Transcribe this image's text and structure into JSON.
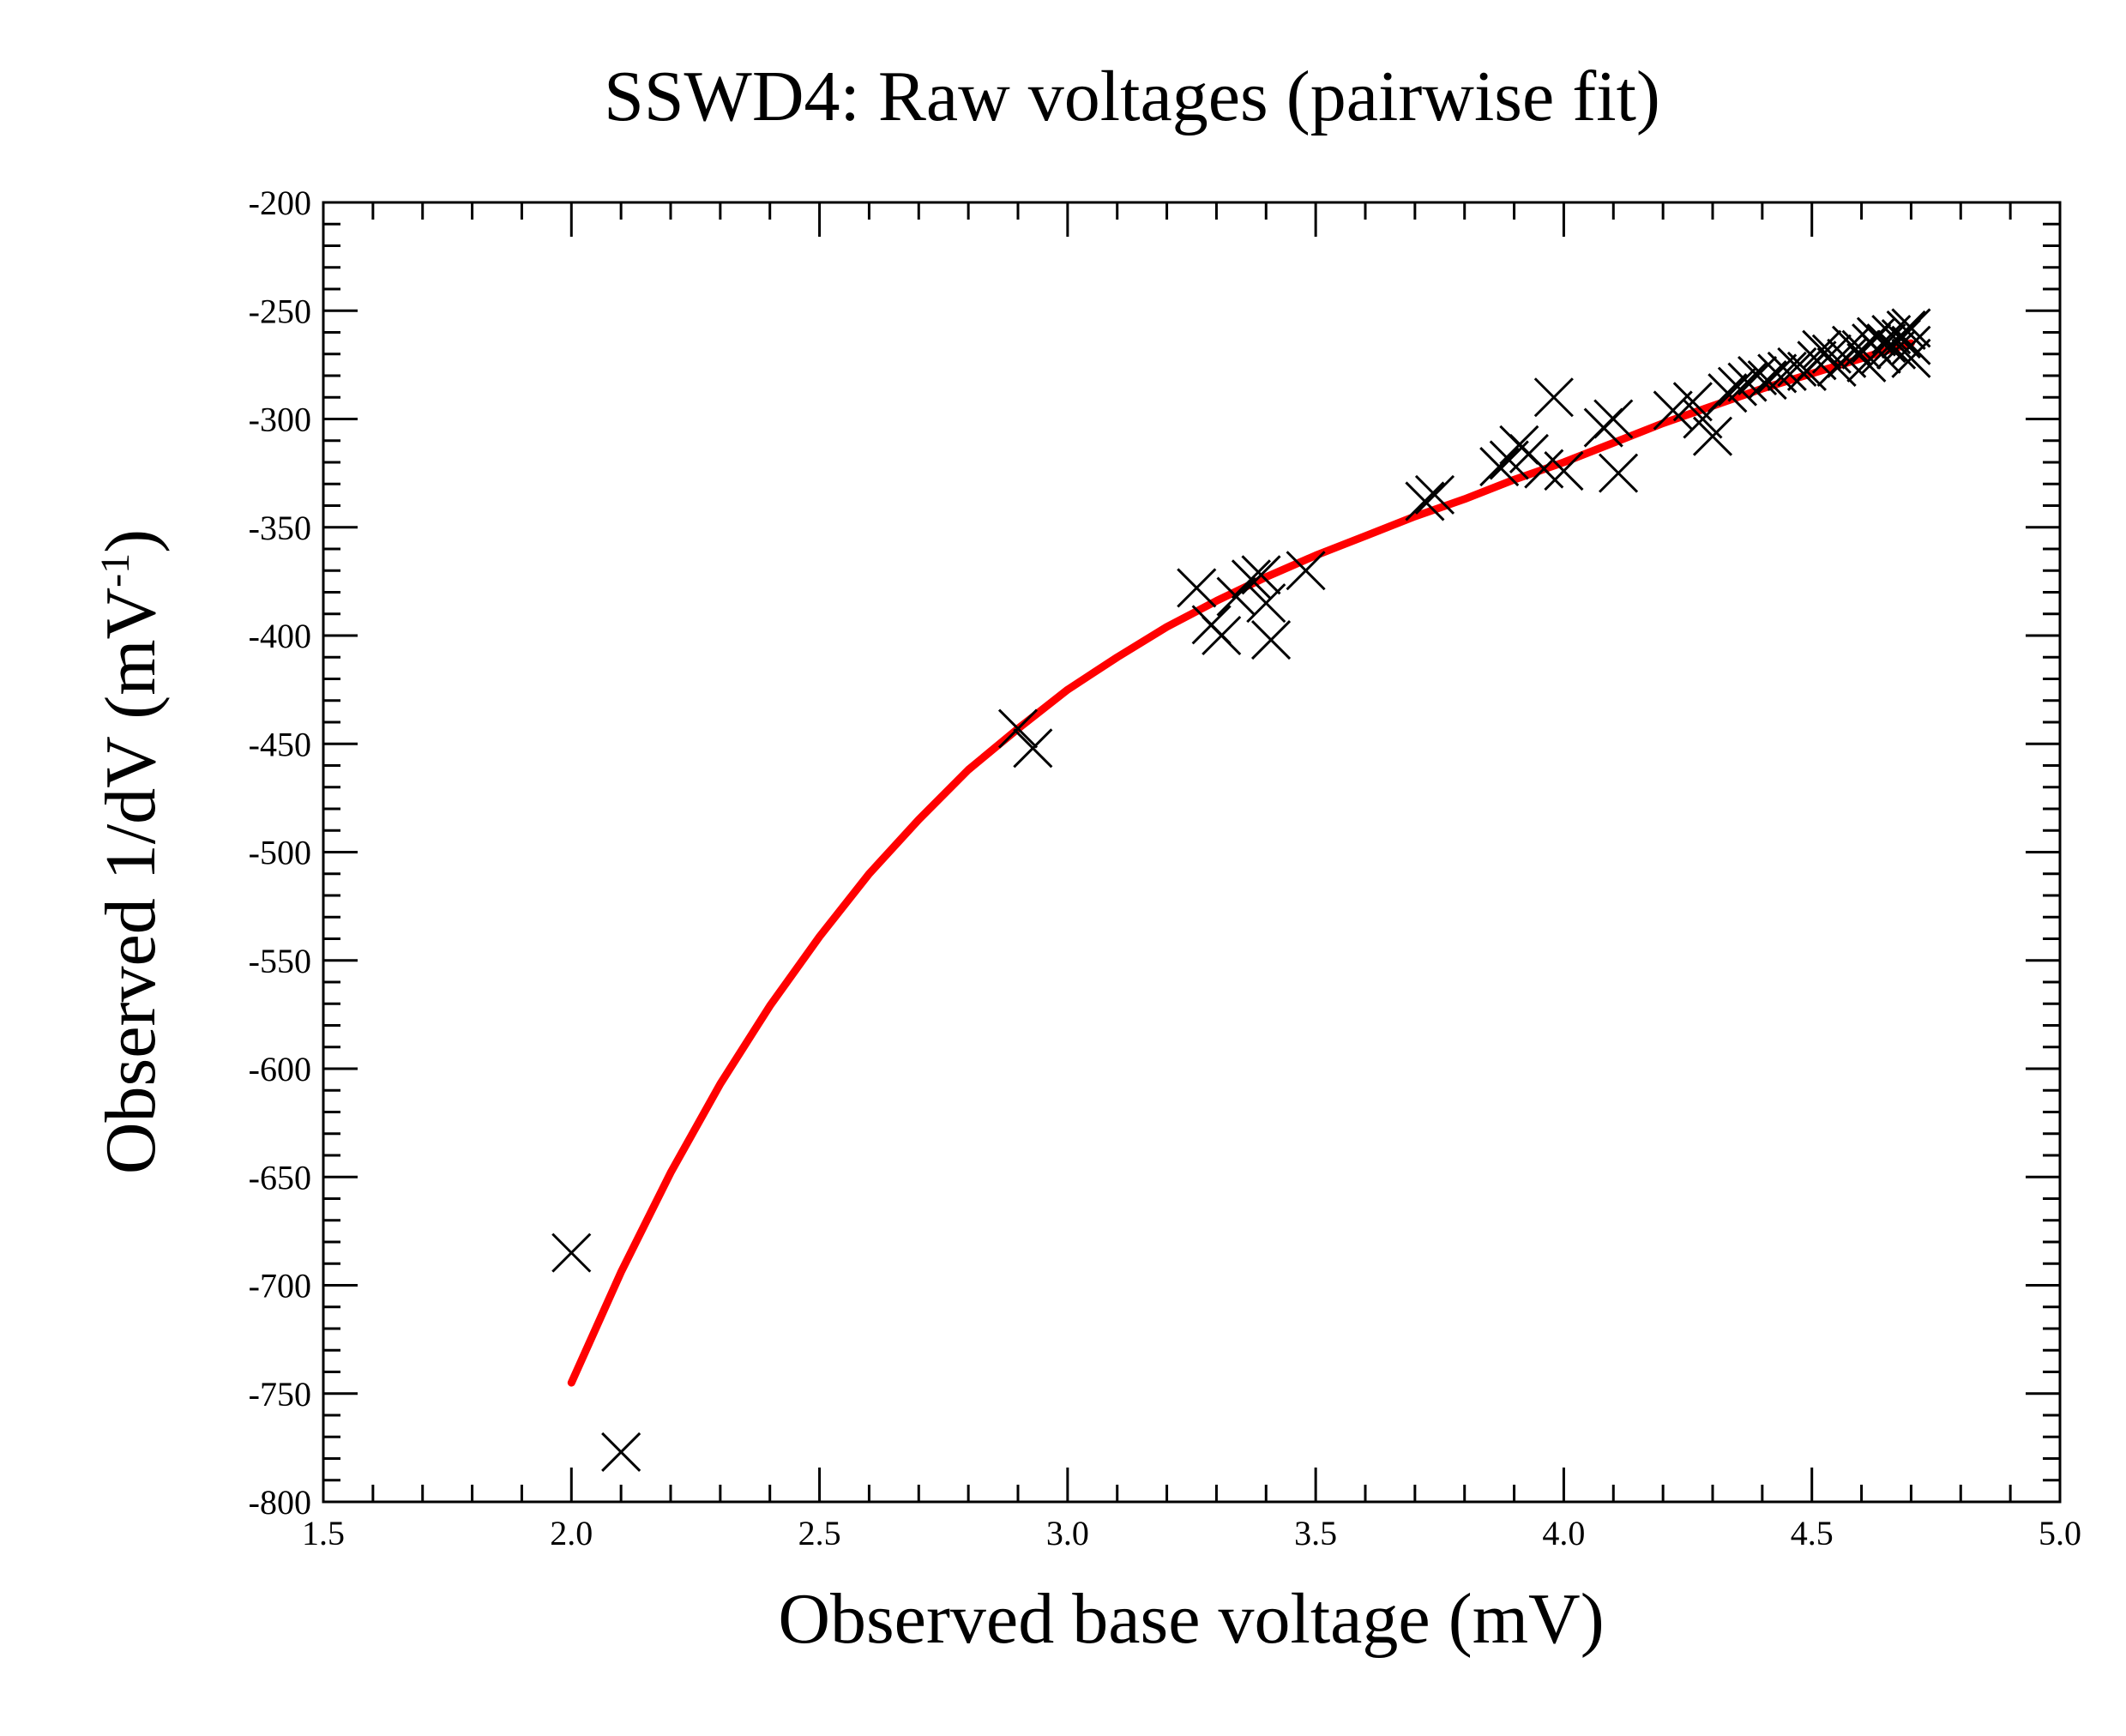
{
  "chart_data": {
    "type": "scatter",
    "title": "SSWD4: Raw voltages (pairwise fit)",
    "xlabel": "Observed base voltage (mV)",
    "ylabel_main": "Observed 1/dV (mV",
    "ylabel_sup": "-1",
    "ylabel_close": ")",
    "xlim": [
      1.5,
      5.0
    ],
    "ylim": [
      -800,
      -200
    ],
    "x_ticks": [
      {
        "value": 1.5,
        "label": "1.5"
      },
      {
        "value": 2.0,
        "label": "2.0"
      },
      {
        "value": 2.5,
        "label": "2.5"
      },
      {
        "value": 3.0,
        "label": "3.0"
      },
      {
        "value": 3.5,
        "label": "3.5"
      },
      {
        "value": 4.0,
        "label": "4.0"
      },
      {
        "value": 4.5,
        "label": "4.5"
      },
      {
        "value": 5.0,
        "label": "5.0"
      }
    ],
    "y_ticks": [
      {
        "value": -200,
        "label": "-200"
      },
      {
        "value": -250,
        "label": "-250"
      },
      {
        "value": -300,
        "label": "-300"
      },
      {
        "value": -350,
        "label": "-350"
      },
      {
        "value": -400,
        "label": "-400"
      },
      {
        "value": -450,
        "label": "-450"
      },
      {
        "value": -500,
        "label": "-500"
      },
      {
        "value": -550,
        "label": "-550"
      },
      {
        "value": -600,
        "label": "-600"
      },
      {
        "value": -650,
        "label": "-650"
      },
      {
        "value": -700,
        "label": "-700"
      },
      {
        "value": -750,
        "label": "-750"
      },
      {
        "value": -800,
        "label": "-800"
      }
    ],
    "x_minor_step": 0.1,
    "y_minor_step": 10,
    "series": [
      {
        "name": "observed",
        "marker": "x",
        "color": "#000000",
        "points": [
          [
            2.0,
            -685
          ],
          [
            2.1,
            -777
          ],
          [
            2.9,
            -443
          ],
          [
            2.93,
            -452
          ],
          [
            3.26,
            -378
          ],
          [
            3.29,
            -395
          ],
          [
            3.31,
            -400
          ],
          [
            3.34,
            -382
          ],
          [
            3.37,
            -374
          ],
          [
            3.39,
            -372
          ],
          [
            3.4,
            -385
          ],
          [
            3.41,
            -402
          ],
          [
            3.48,
            -370
          ],
          [
            3.72,
            -338
          ],
          [
            3.74,
            -335
          ],
          [
            3.87,
            -322
          ],
          [
            3.89,
            -319
          ],
          [
            3.91,
            -312
          ],
          [
            3.93,
            -316
          ],
          [
            3.96,
            -323
          ],
          [
            3.98,
            -290
          ],
          [
            4.0,
            -324
          ],
          [
            4.08,
            -304
          ],
          [
            4.1,
            -300
          ],
          [
            4.11,
            -325
          ],
          [
            4.22,
            -296
          ],
          [
            4.26,
            -292
          ],
          [
            4.28,
            -300
          ],
          [
            4.3,
            -308
          ],
          [
            4.33,
            -288
          ],
          [
            4.35,
            -285
          ],
          [
            4.37,
            -283
          ],
          [
            4.39,
            -280
          ],
          [
            4.41,
            -282
          ],
          [
            4.43,
            -279
          ],
          [
            4.45,
            -278
          ],
          [
            4.47,
            -276
          ],
          [
            4.49,
            -278
          ],
          [
            4.51,
            -273
          ],
          [
            4.52,
            -268
          ],
          [
            4.54,
            -270
          ],
          [
            4.55,
            -276
          ],
          [
            4.57,
            -272
          ],
          [
            4.58,
            -266
          ],
          [
            4.6,
            -268
          ],
          [
            4.61,
            -274
          ],
          [
            4.62,
            -265
          ],
          [
            4.63,
            -262
          ],
          [
            4.64,
            -270
          ],
          [
            4.65,
            -265
          ],
          [
            4.66,
            -261
          ],
          [
            4.67,
            -268
          ],
          [
            4.68,
            -263
          ],
          [
            4.69,
            -259
          ],
          [
            4.7,
            -258
          ],
          [
            4.7,
            -266
          ],
          [
            4.7,
            -272
          ]
        ]
      },
      {
        "name": "pairwise fit",
        "type": "line",
        "color": "#ff0000",
        "points": [
          [
            2.0,
            -745
          ],
          [
            2.1,
            -694
          ],
          [
            2.2,
            -648
          ],
          [
            2.3,
            -607
          ],
          [
            2.4,
            -571
          ],
          [
            2.5,
            -539
          ],
          [
            2.6,
            -510
          ],
          [
            2.7,
            -485
          ],
          [
            2.8,
            -462
          ],
          [
            2.9,
            -443
          ],
          [
            3.0,
            -425
          ],
          [
            3.1,
            -410
          ],
          [
            3.2,
            -396
          ],
          [
            3.3,
            -384
          ],
          [
            3.4,
            -373
          ],
          [
            3.5,
            -363
          ],
          [
            3.6,
            -354
          ],
          [
            3.7,
            -345
          ],
          [
            3.8,
            -337
          ],
          [
            3.9,
            -328
          ],
          [
            4.0,
            -320
          ],
          [
            4.1,
            -311
          ],
          [
            4.2,
            -302
          ],
          [
            4.3,
            -294
          ],
          [
            4.4,
            -286
          ],
          [
            4.5,
            -279
          ],
          [
            4.6,
            -272
          ],
          [
            4.7,
            -265
          ]
        ]
      }
    ]
  }
}
